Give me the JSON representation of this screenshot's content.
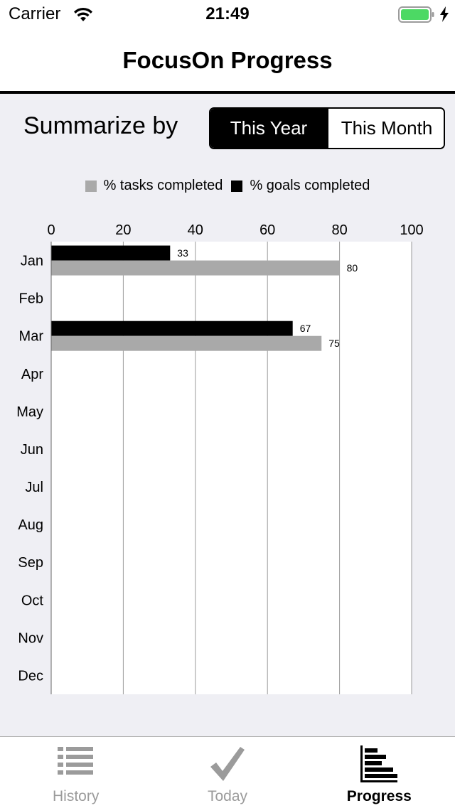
{
  "status_bar": {
    "carrier": "Carrier",
    "time": "21:49",
    "battery_color": "#4cd964"
  },
  "nav": {
    "title": "FocusOn Progress"
  },
  "summarize": {
    "label": "Summarize by",
    "options": [
      "This Year",
      "This Month"
    ],
    "selected": 0
  },
  "chart_data": {
    "type": "bar",
    "orientation": "horizontal",
    "categories": [
      "Jan",
      "Feb",
      "Mar",
      "Apr",
      "May",
      "Jun",
      "Jul",
      "Aug",
      "Sep",
      "Oct",
      "Nov",
      "Dec"
    ],
    "series": [
      {
        "name": "% goals completed",
        "color": "#000000",
        "values": [
          33,
          null,
          67,
          null,
          null,
          null,
          null,
          null,
          null,
          null,
          null,
          null
        ]
      },
      {
        "name": "% tasks completed",
        "color": "#a9a9a9",
        "values": [
          80,
          null,
          75,
          null,
          null,
          null,
          null,
          null,
          null,
          null,
          null,
          null
        ]
      }
    ],
    "legend": [
      {
        "label": "% tasks completed",
        "color": "#a9a9a9"
      },
      {
        "label": "% goals completed",
        "color": "#000000"
      }
    ],
    "xlim": [
      0,
      100
    ],
    "xticks": [
      0,
      20,
      40,
      60,
      80,
      100
    ],
    "xaxis_position": "top",
    "grid": true,
    "legend_position": "top"
  },
  "tab_bar": {
    "tabs": [
      {
        "label": "History",
        "icon": "list-icon",
        "active": false
      },
      {
        "label": "Today",
        "icon": "checkmark-icon",
        "active": false
      },
      {
        "label": "Progress",
        "icon": "bar-chart-icon",
        "active": true
      }
    ]
  }
}
